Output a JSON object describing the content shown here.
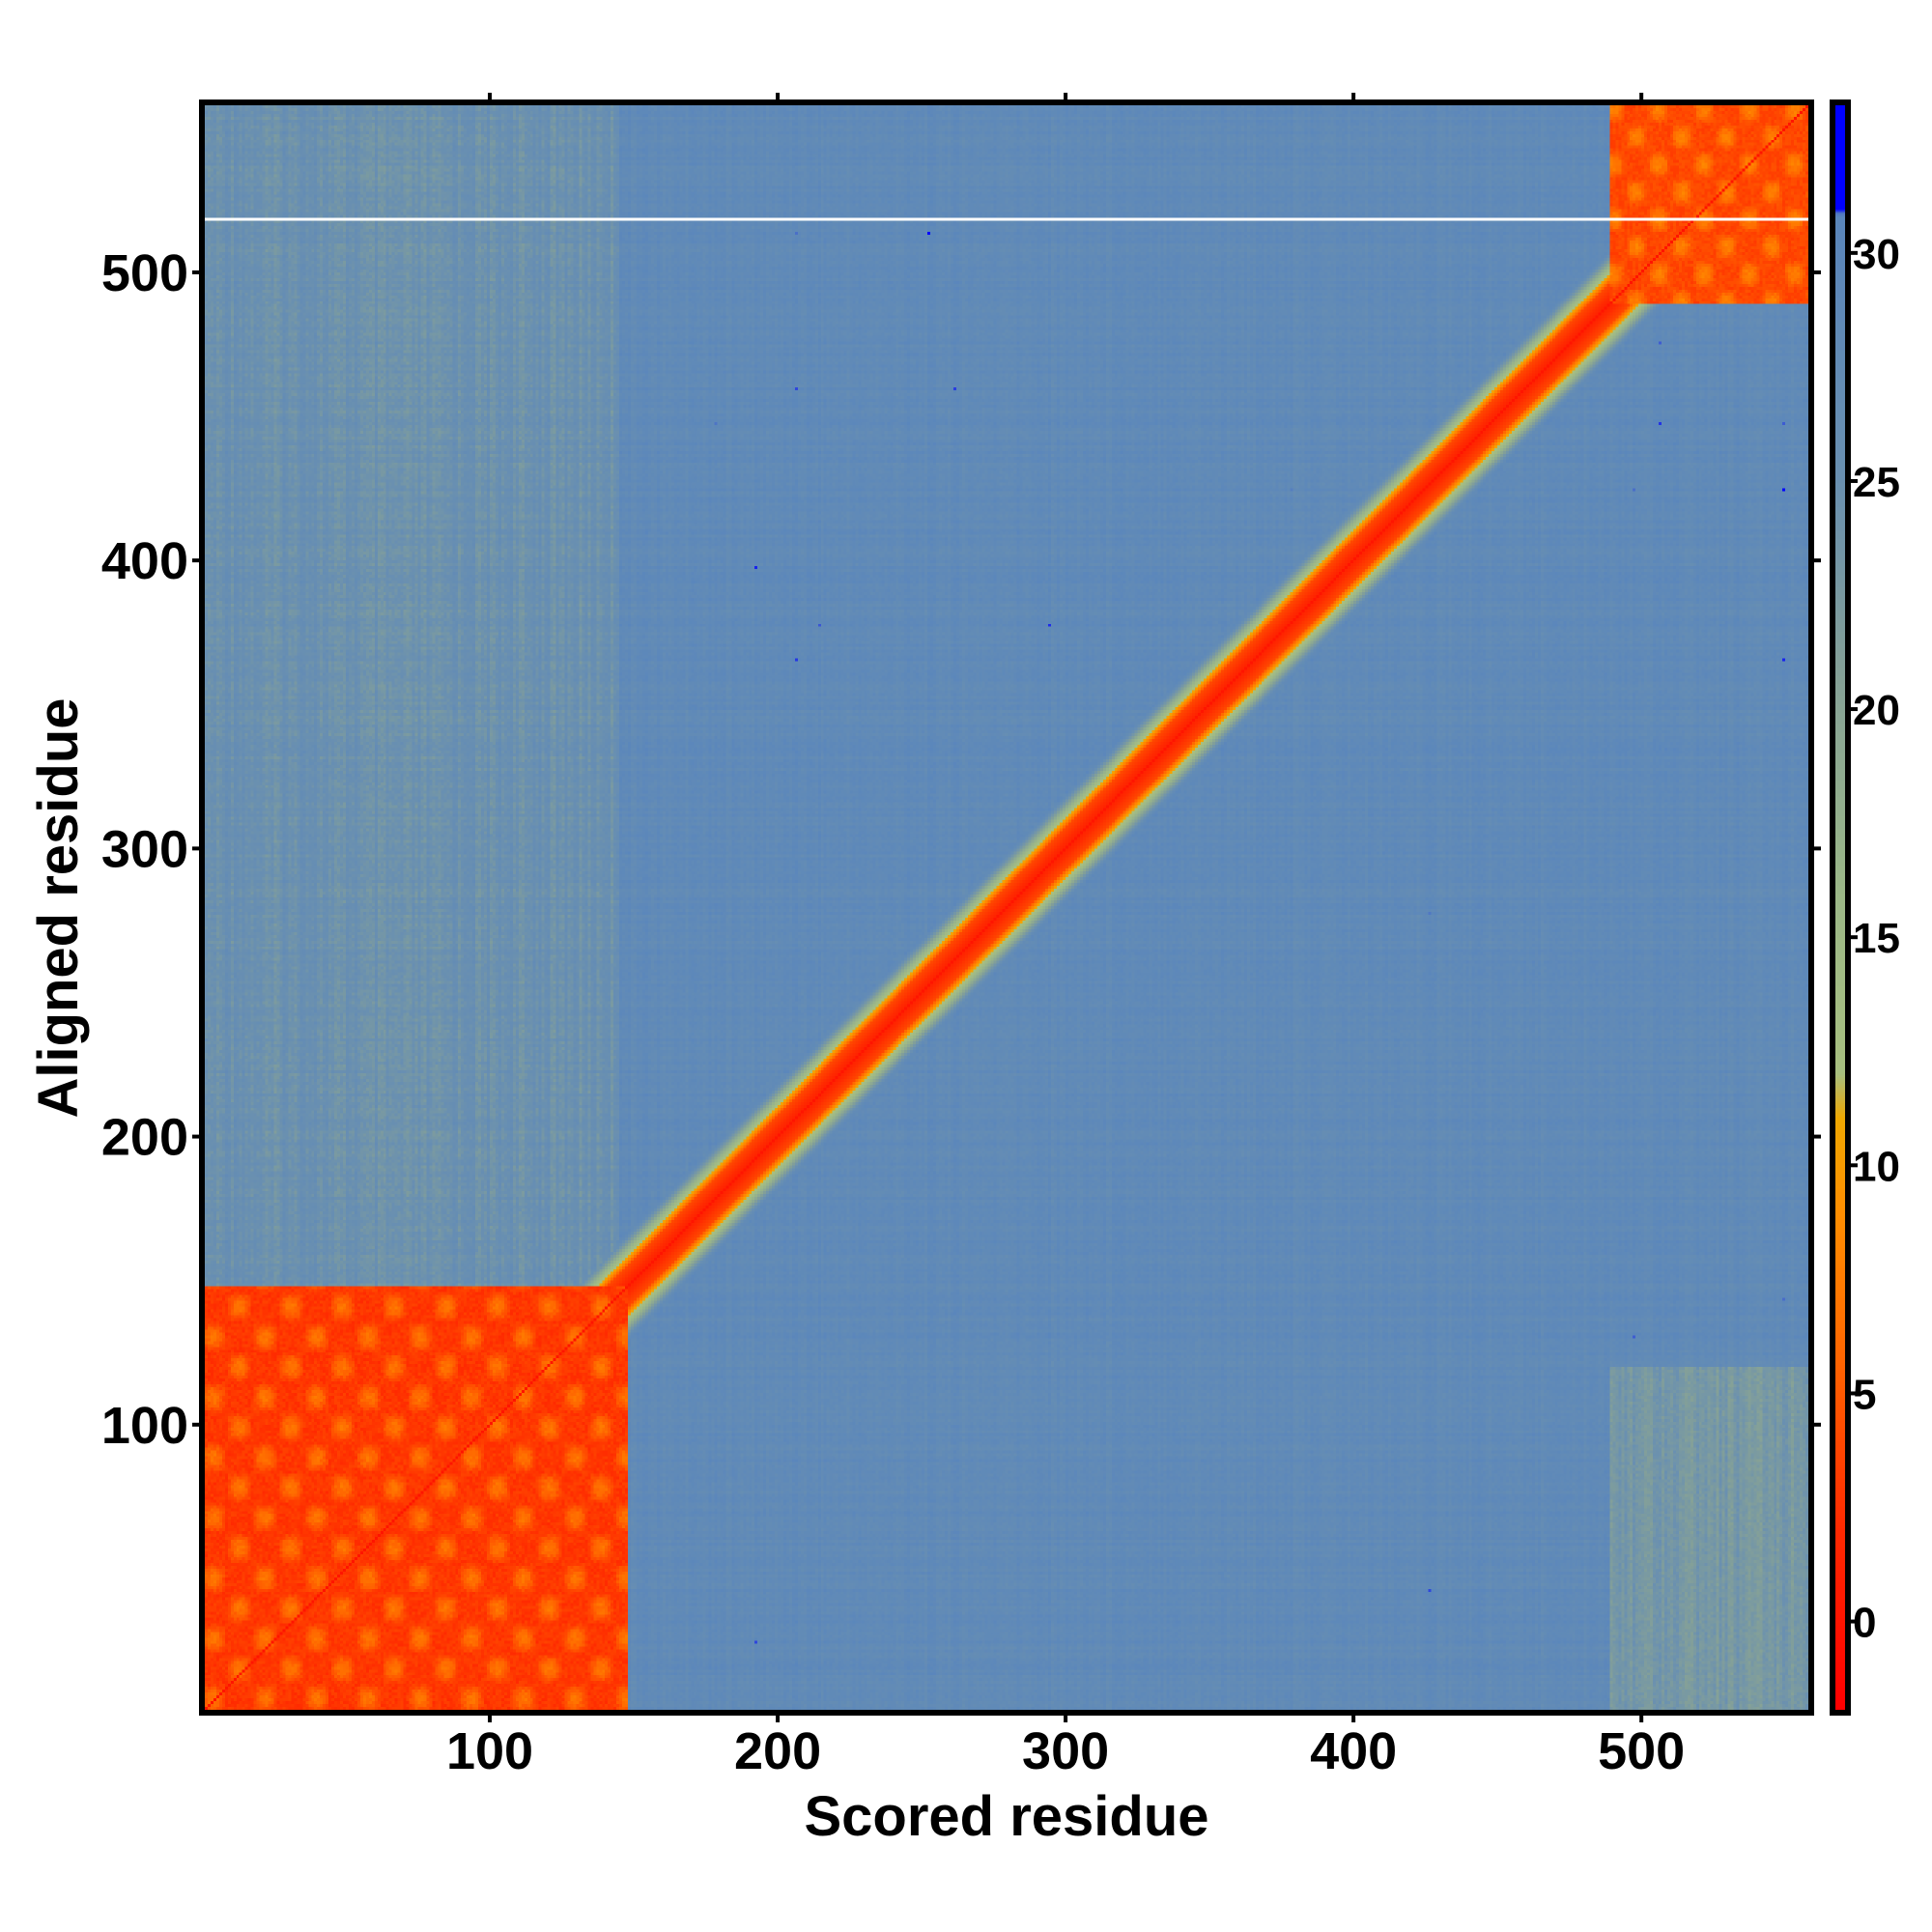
{
  "chart_data": {
    "type": "heatmap",
    "title": "",
    "xlabel": "Scored residue",
    "ylabel": "Aligned residue",
    "xlim": [
      0,
      559
    ],
    "ylim": [
      0,
      559
    ],
    "xticks": [
      100,
      200,
      300,
      400,
      500
    ],
    "yticks": [
      100,
      200,
      300,
      400,
      500
    ],
    "colorbar": {
      "range": [
        -2,
        33.3
      ],
      "ticks": [
        0,
        5,
        10,
        15,
        20,
        25,
        30
      ],
      "stops": [
        {
          "value": -2,
          "color": "#ff0000"
        },
        {
          "value": 2,
          "color": "#ff2a00"
        },
        {
          "value": 6,
          "color": "#ff6a00"
        },
        {
          "value": 9,
          "color": "#ff9000"
        },
        {
          "value": 11,
          "color": "#f0a800"
        },
        {
          "value": 12,
          "color": "#a8c080"
        },
        {
          "value": 16,
          "color": "#9cb888"
        },
        {
          "value": 21,
          "color": "#84a098"
        },
        {
          "value": 25,
          "color": "#6a90b0"
        },
        {
          "value": 30.9,
          "color": "#5a86bc"
        },
        {
          "value": 31,
          "color": "#0000ff"
        },
        {
          "value": 33.3,
          "color": "#0000ff"
        }
      ]
    },
    "regions": [
      {
        "name": "domain-1-block",
        "x": [
          1,
          148
        ],
        "y": [
          1,
          148
        ],
        "value": 2
      },
      {
        "name": "domain-2-block",
        "x": [
          490,
          559
        ],
        "y": [
          490,
          559
        ],
        "value": 3
      },
      {
        "name": "diagonal-band",
        "value": 0.5
      },
      {
        "name": "domain-1-vs-rest",
        "x": [
          1,
          145
        ],
        "y": [
          149,
          559
        ],
        "value": 25
      },
      {
        "name": "domain-2-vs-nterm",
        "x": [
          490,
          559
        ],
        "y": [
          1,
          120
        ],
        "value": 23
      },
      {
        "name": "background",
        "value": 28.5
      }
    ],
    "missing_row": 519
  }
}
